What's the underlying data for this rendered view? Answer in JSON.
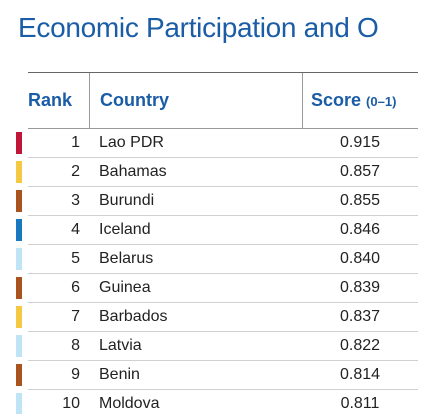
{
  "header": {
    "title": "Economic Participation and O"
  },
  "table": {
    "columns": {
      "rank": "Rank",
      "country": "Country",
      "score": "Score",
      "score_unit": "(0–1)"
    },
    "rows": [
      {
        "rank": "1",
        "country": "Lao PDR",
        "score": "0.915",
        "color": "#c0163a"
      },
      {
        "rank": "2",
        "country": "Bahamas",
        "score": "0.857",
        "color": "#f6c945"
      },
      {
        "rank": "3",
        "country": "Burundi",
        "score": "0.855",
        "color": "#a9541f"
      },
      {
        "rank": "4",
        "country": "Iceland",
        "score": "0.846",
        "color": "#1878c0"
      },
      {
        "rank": "5",
        "country": "Belarus",
        "score": "0.840",
        "color": "#bfe4f6"
      },
      {
        "rank": "6",
        "country": "Guinea",
        "score": "0.839",
        "color": "#a9541f"
      },
      {
        "rank": "7",
        "country": "Barbados",
        "score": "0.837",
        "color": "#f6c945"
      },
      {
        "rank": "8",
        "country": "Latvia",
        "score": "0.822",
        "color": "#bfe4f6"
      },
      {
        "rank": "9",
        "country": "Benin",
        "score": "0.814",
        "color": "#a9541f"
      },
      {
        "rank": "10",
        "country": "Moldova",
        "score": "0.811",
        "color": "#bfe4f6"
      }
    ]
  }
}
